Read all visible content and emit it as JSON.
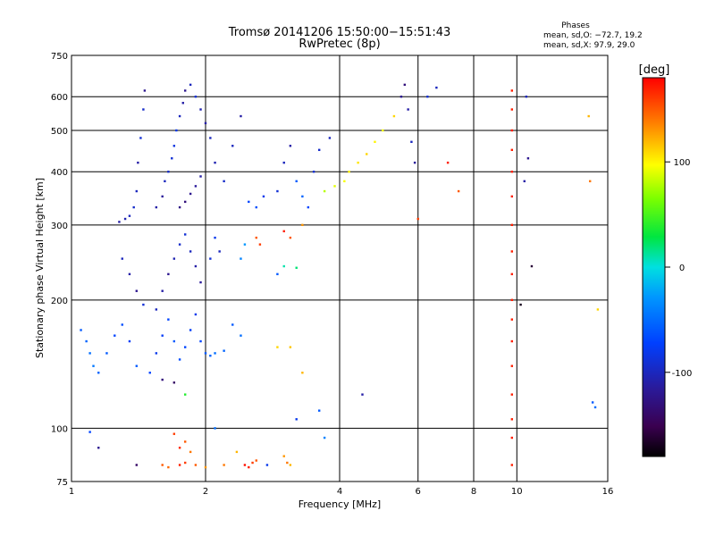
{
  "chart_data": {
    "type": "scatter",
    "title": "Tromsø 20141206 15:50:00−15:51:43",
    "subtitle": "RwPretec (8p)",
    "xlabel": "Frequency [MHz]",
    "ylabel": "Stationary phase Virtual Height [km]",
    "x_scale": "log",
    "y_scale": "log",
    "xlim": [
      1,
      16
    ],
    "ylim": [
      75,
      750
    ],
    "x_ticks": [
      1,
      2,
      4,
      6,
      8,
      10,
      16
    ],
    "y_ticks": [
      75,
      100,
      200,
      300,
      400,
      500,
      600,
      750
    ],
    "grid": true,
    "stats": {
      "title": "Phases",
      "line_o": "mean, sd,O: −72.7, 19.2",
      "line_x": "mean, sd,X:  97.9, 29.0"
    },
    "colorbar": {
      "label": "[deg]",
      "min": -180,
      "max": 180,
      "ticks": [
        100,
        0,
        -100
      ],
      "colormap": "rainbow (black–purple–blue–cyan–green–yellow–red)"
    },
    "points": [
      {
        "f": 1.28,
        "h": 305,
        "phase": -110
      },
      {
        "f": 1.32,
        "h": 310,
        "phase": -105
      },
      {
        "f": 1.35,
        "h": 315,
        "phase": -100
      },
      {
        "f": 1.38,
        "h": 330,
        "phase": -95
      },
      {
        "f": 1.4,
        "h": 360,
        "phase": -100
      },
      {
        "f": 1.41,
        "h": 420,
        "phase": -110
      },
      {
        "f": 1.43,
        "h": 480,
        "phase": -90
      },
      {
        "f": 1.45,
        "h": 560,
        "phase": -95
      },
      {
        "f": 1.46,
        "h": 620,
        "phase": -120
      },
      {
        "f": 1.55,
        "h": 330,
        "phase": -110
      },
      {
        "f": 1.6,
        "h": 350,
        "phase": -115
      },
      {
        "f": 1.62,
        "h": 380,
        "phase": -100
      },
      {
        "f": 1.65,
        "h": 400,
        "phase": -95
      },
      {
        "f": 1.68,
        "h": 430,
        "phase": -90
      },
      {
        "f": 1.7,
        "h": 460,
        "phase": -85
      },
      {
        "f": 1.72,
        "h": 500,
        "phase": -80
      },
      {
        "f": 1.75,
        "h": 540,
        "phase": -100
      },
      {
        "f": 1.78,
        "h": 580,
        "phase": -110
      },
      {
        "f": 1.8,
        "h": 620,
        "phase": -120
      },
      {
        "f": 1.85,
        "h": 640,
        "phase": -100
      },
      {
        "f": 1.9,
        "h": 600,
        "phase": -90
      },
      {
        "f": 1.95,
        "h": 560,
        "phase": -105
      },
      {
        "f": 2.0,
        "h": 520,
        "phase": -110
      },
      {
        "f": 2.05,
        "h": 480,
        "phase": -100
      },
      {
        "f": 1.75,
        "h": 330,
        "phase": -125
      },
      {
        "f": 1.8,
        "h": 340,
        "phase": -130
      },
      {
        "f": 1.85,
        "h": 355,
        "phase": -120
      },
      {
        "f": 1.9,
        "h": 370,
        "phase": -115
      },
      {
        "f": 1.95,
        "h": 390,
        "phase": -110
      },
      {
        "f": 2.1,
        "h": 420,
        "phase": -105
      },
      {
        "f": 2.2,
        "h": 380,
        "phase": -95
      },
      {
        "f": 2.3,
        "h": 460,
        "phase": -100
      },
      {
        "f": 2.4,
        "h": 540,
        "phase": -110
      },
      {
        "f": 2.5,
        "h": 340,
        "phase": -70
      },
      {
        "f": 2.6,
        "h": 330,
        "phase": -65
      },
      {
        "f": 2.7,
        "h": 350,
        "phase": -80
      },
      {
        "f": 2.9,
        "h": 360,
        "phase": -90
      },
      {
        "f": 3.0,
        "h": 420,
        "phase": -100
      },
      {
        "f": 3.1,
        "h": 460,
        "phase": -110
      },
      {
        "f": 3.2,
        "h": 380,
        "phase": -60
      },
      {
        "f": 3.3,
        "h": 350,
        "phase": -55
      },
      {
        "f": 3.4,
        "h": 330,
        "phase": -70
      },
      {
        "f": 3.5,
        "h": 400,
        "phase": -90
      },
      {
        "f": 3.6,
        "h": 450,
        "phase": -95
      },
      {
        "f": 3.8,
        "h": 480,
        "phase": -100
      },
      {
        "f": 3.7,
        "h": 360,
        "phase": 80
      },
      {
        "f": 3.9,
        "h": 370,
        "phase": 90
      },
      {
        "f": 4.1,
        "h": 380,
        "phase": 95
      },
      {
        "f": 4.2,
        "h": 400,
        "phase": 100
      },
      {
        "f": 4.4,
        "h": 420,
        "phase": 105
      },
      {
        "f": 4.6,
        "h": 440,
        "phase": 110
      },
      {
        "f": 4.8,
        "h": 470,
        "phase": 100
      },
      {
        "f": 5.0,
        "h": 500,
        "phase": 95
      },
      {
        "f": 5.3,
        "h": 540,
        "phase": 110
      },
      {
        "f": 5.5,
        "h": 600,
        "phase": -120
      },
      {
        "f": 5.6,
        "h": 640,
        "phase": -130
      },
      {
        "f": 5.7,
        "h": 560,
        "phase": -110
      },
      {
        "f": 5.8,
        "h": 470,
        "phase": -100
      },
      {
        "f": 5.9,
        "h": 420,
        "phase": -115
      },
      {
        "f": 6.0,
        "h": 310,
        "phase": 160
      },
      {
        "f": 6.3,
        "h": 600,
        "phase": -90
      },
      {
        "f": 6.6,
        "h": 630,
        "phase": -100
      },
      {
        "f": 7.0,
        "h": 420,
        "phase": 170
      },
      {
        "f": 7.4,
        "h": 360,
        "phase": 150
      },
      {
        "f": 9.75,
        "h": 620,
        "phase": 170
      },
      {
        "f": 9.75,
        "h": 560,
        "phase": 170
      },
      {
        "f": 9.75,
        "h": 500,
        "phase": 170
      },
      {
        "f": 9.75,
        "h": 450,
        "phase": 170
      },
      {
        "f": 9.75,
        "h": 400,
        "phase": 170
      },
      {
        "f": 9.75,
        "h": 350,
        "phase": 170
      },
      {
        "f": 9.75,
        "h": 300,
        "phase": 170
      },
      {
        "f": 9.75,
        "h": 260,
        "phase": 170
      },
      {
        "f": 9.75,
        "h": 230,
        "phase": 170
      },
      {
        "f": 9.75,
        "h": 200,
        "phase": 170
      },
      {
        "f": 9.75,
        "h": 180,
        "phase": 170
      },
      {
        "f": 9.75,
        "h": 160,
        "phase": 170
      },
      {
        "f": 9.75,
        "h": 140,
        "phase": 170
      },
      {
        "f": 9.75,
        "h": 120,
        "phase": 170
      },
      {
        "f": 9.75,
        "h": 105,
        "phase": 170
      },
      {
        "f": 9.75,
        "h": 95,
        "phase": 170
      },
      {
        "f": 9.75,
        "h": 82,
        "phase": 170
      },
      {
        "f": 10.5,
        "h": 600,
        "phase": -100
      },
      {
        "f": 10.4,
        "h": 380,
        "phase": -110
      },
      {
        "f": 10.8,
        "h": 240,
        "phase": -160
      },
      {
        "f": 10.2,
        "h": 195,
        "phase": -170
      },
      {
        "f": 10.6,
        "h": 430,
        "phase": -120
      },
      {
        "f": 14.5,
        "h": 540,
        "phase": 120
      },
      {
        "f": 14.6,
        "h": 380,
        "phase": 140
      },
      {
        "f": 15.2,
        "h": 190,
        "phase": 110
      },
      {
        "f": 14.8,
        "h": 115,
        "phase": -60
      },
      {
        "f": 15.0,
        "h": 112,
        "phase": -50
      },
      {
        "f": 1.3,
        "h": 250,
        "phase": -100
      },
      {
        "f": 1.35,
        "h": 230,
        "phase": -110
      },
      {
        "f": 1.4,
        "h": 210,
        "phase": -120
      },
      {
        "f": 1.45,
        "h": 195,
        "phase": -90
      },
      {
        "f": 1.55,
        "h": 190,
        "phase": -100
      },
      {
        "f": 1.6,
        "h": 210,
        "phase": -110
      },
      {
        "f": 1.65,
        "h": 230,
        "phase": -120
      },
      {
        "f": 1.7,
        "h": 250,
        "phase": -105
      },
      {
        "f": 1.75,
        "h": 270,
        "phase": -95
      },
      {
        "f": 1.8,
        "h": 285,
        "phase": -90
      },
      {
        "f": 1.85,
        "h": 260,
        "phase": -100
      },
      {
        "f": 1.9,
        "h": 240,
        "phase": -110
      },
      {
        "f": 1.95,
        "h": 220,
        "phase": -115
      },
      {
        "f": 2.05,
        "h": 250,
        "phase": -90
      },
      {
        "f": 2.1,
        "h": 280,
        "phase": -80
      },
      {
        "f": 2.15,
        "h": 260,
        "phase": -100
      },
      {
        "f": 2.4,
        "h": 250,
        "phase": -40
      },
      {
        "f": 2.45,
        "h": 270,
        "phase": -30
      },
      {
        "f": 2.6,
        "h": 280,
        "phase": 150
      },
      {
        "f": 2.65,
        "h": 270,
        "phase": 160
      },
      {
        "f": 3.0,
        "h": 290,
        "phase": 170
      },
      {
        "f": 3.1,
        "h": 280,
        "phase": 150
      },
      {
        "f": 3.3,
        "h": 300,
        "phase": 130
      },
      {
        "f": 3.0,
        "h": 240,
        "phase": 10
      },
      {
        "f": 3.2,
        "h": 238,
        "phase": 20
      },
      {
        "f": 2.9,
        "h": 230,
        "phase": -60
      },
      {
        "f": 1.05,
        "h": 170,
        "phase": -60
      },
      {
        "f": 1.08,
        "h": 160,
        "phase": -55
      },
      {
        "f": 1.1,
        "h": 150,
        "phase": -50
      },
      {
        "f": 1.12,
        "h": 140,
        "phase": -45
      },
      {
        "f": 1.15,
        "h": 135,
        "phase": -55
      },
      {
        "f": 1.2,
        "h": 150,
        "phase": -60
      },
      {
        "f": 1.25,
        "h": 165,
        "phase": -70
      },
      {
        "f": 1.3,
        "h": 175,
        "phase": -65
      },
      {
        "f": 1.35,
        "h": 160,
        "phase": -75
      },
      {
        "f": 1.4,
        "h": 140,
        "phase": -60
      },
      {
        "f": 1.5,
        "h": 135,
        "phase": -70
      },
      {
        "f": 1.55,
        "h": 150,
        "phase": -80
      },
      {
        "f": 1.6,
        "h": 165,
        "phase": -75
      },
      {
        "f": 1.65,
        "h": 180,
        "phase": -70
      },
      {
        "f": 1.7,
        "h": 160,
        "phase": -60
      },
      {
        "f": 1.75,
        "h": 145,
        "phase": -65
      },
      {
        "f": 1.8,
        "h": 155,
        "phase": -70
      },
      {
        "f": 1.85,
        "h": 170,
        "phase": -75
      },
      {
        "f": 1.9,
        "h": 185,
        "phase": -80
      },
      {
        "f": 1.95,
        "h": 160,
        "phase": -70
      },
      {
        "f": 2.0,
        "h": 150,
        "phase": -60
      },
      {
        "f": 2.05,
        "h": 148,
        "phase": -55
      },
      {
        "f": 2.1,
        "h": 150,
        "phase": -50
      },
      {
        "f": 2.2,
        "h": 152,
        "phase": -55
      },
      {
        "f": 2.3,
        "h": 175,
        "phase": -60
      },
      {
        "f": 1.6,
        "h": 130,
        "phase": -130
      },
      {
        "f": 1.7,
        "h": 128,
        "phase": -140
      },
      {
        "f": 1.8,
        "h": 120,
        "phase": 40
      },
      {
        "f": 2.4,
        "h": 165,
        "phase": -50
      },
      {
        "f": 2.9,
        "h": 155,
        "phase": 110
      },
      {
        "f": 3.1,
        "h": 155,
        "phase": 115
      },
      {
        "f": 3.3,
        "h": 135,
        "phase": 120
      },
      {
        "f": 3.2,
        "h": 105,
        "phase": -80
      },
      {
        "f": 3.6,
        "h": 110,
        "phase": -60
      },
      {
        "f": 4.5,
        "h": 120,
        "phase": -110
      },
      {
        "f": 3.7,
        "h": 95,
        "phase": -40
      },
      {
        "f": 2.1,
        "h": 100,
        "phase": -50
      },
      {
        "f": 1.1,
        "h": 98,
        "phase": -70
      },
      {
        "f": 1.15,
        "h": 90,
        "phase": -120
      },
      {
        "f": 1.4,
        "h": 82,
        "phase": -140
      },
      {
        "f": 1.7,
        "h": 97,
        "phase": 160
      },
      {
        "f": 1.75,
        "h": 90,
        "phase": 165
      },
      {
        "f": 1.8,
        "h": 93,
        "phase": 150
      },
      {
        "f": 1.85,
        "h": 88,
        "phase": 140
      },
      {
        "f": 1.6,
        "h": 82,
        "phase": 150
      },
      {
        "f": 1.65,
        "h": 81,
        "phase": 145
      },
      {
        "f": 1.75,
        "h": 82,
        "phase": 170
      },
      {
        "f": 1.8,
        "h": 83,
        "phase": 160
      },
      {
        "f": 1.9,
        "h": 82,
        "phase": 150
      },
      {
        "f": 2.0,
        "h": 81,
        "phase": 130
      },
      {
        "f": 2.2,
        "h": 82,
        "phase": 140
      },
      {
        "f": 2.35,
        "h": 88,
        "phase": 120
      },
      {
        "f": 2.45,
        "h": 82,
        "phase": 175
      },
      {
        "f": 2.5,
        "h": 81,
        "phase": 170
      },
      {
        "f": 2.55,
        "h": 83,
        "phase": 160
      },
      {
        "f": 2.6,
        "h": 84,
        "phase": 150
      },
      {
        "f": 2.75,
        "h": 82,
        "phase": -80
      },
      {
        "f": 3.0,
        "h": 86,
        "phase": 130
      },
      {
        "f": 3.05,
        "h": 83,
        "phase": 140
      },
      {
        "f": 3.1,
        "h": 82,
        "phase": 120
      }
    ]
  }
}
